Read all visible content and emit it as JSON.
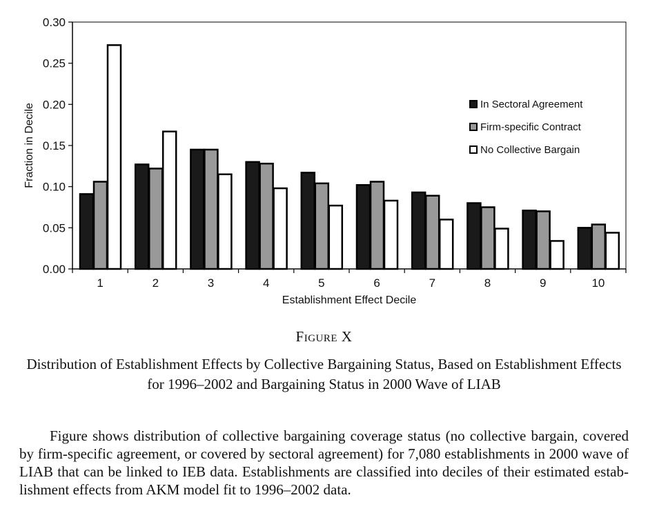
{
  "chart_data": {
    "type": "bar",
    "xlabel": "Establishment Effect Decile",
    "ylabel": "Fraction in Decile",
    "ylim": [
      0,
      0.3
    ],
    "yticks": [
      "0.00",
      "0.05",
      "0.10",
      "0.15",
      "0.20",
      "0.25",
      "0.30"
    ],
    "categories": [
      "1",
      "2",
      "3",
      "4",
      "5",
      "6",
      "7",
      "8",
      "9",
      "10"
    ],
    "legend_position": "right",
    "series": [
      {
        "name": "In Sectoral Agreement",
        "color": "#1a1a1a",
        "values": [
          0.091,
          0.127,
          0.145,
          0.13,
          0.117,
          0.102,
          0.093,
          0.08,
          0.071,
          0.05
        ]
      },
      {
        "name": "Firm-specific Contract",
        "color": "#999999",
        "values": [
          0.106,
          0.122,
          0.145,
          0.128,
          0.104,
          0.106,
          0.089,
          0.075,
          0.07,
          0.054
        ]
      },
      {
        "name": "No Collective Bargain",
        "color": "#ffffff",
        "values": [
          0.272,
          0.167,
          0.115,
          0.098,
          0.077,
          0.083,
          0.06,
          0.049,
          0.034,
          0.044
        ]
      }
    ]
  },
  "figure": {
    "label": "Figure X",
    "title": "Distribution of Establishment Effects by Collective Bargaining Status, Based on Establishment Effects for 1996–2002 and Bargaining Status in 2000 Wave of LIAB",
    "note": "Figure shows distribution of collective bargaining coverage status (no col­lective bargain, covered by firm-specific agreement, or covered by sectoral agreement) for 7,080 establishments in 2000 wave of LIAB that can be linked to IEB data. Establishments are classified into deciles of their estimated estab­lishment effects from AKM model fit to 1996–2002 data."
  }
}
